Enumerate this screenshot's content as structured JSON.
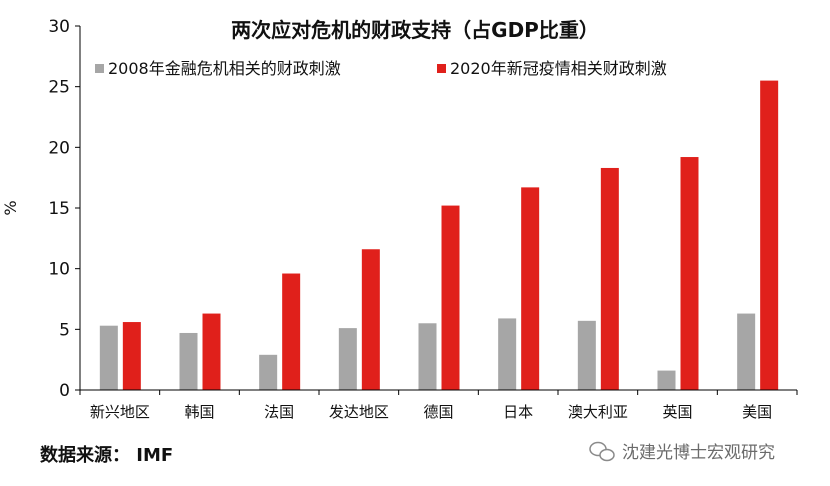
{
  "chart_data": {
    "type": "bar",
    "title": "两次应对危机的财政支持（占GDP比重）",
    "xlabel": "",
    "ylabel": "%",
    "ylim": [
      0,
      30
    ],
    "yticks": [
      0,
      5,
      10,
      15,
      20,
      25,
      30
    ],
    "grid": false,
    "legend_position": "top",
    "categories": [
      "新兴地区",
      "韩国",
      "法国",
      "发达地区",
      "德国",
      "日本",
      "澳大利亚",
      "英国",
      "美国"
    ],
    "series": [
      {
        "name": "2008年金融危机相关的财政刺激",
        "color": "#a6a6a6",
        "values": [
          5.3,
          4.7,
          2.9,
          5.1,
          5.5,
          5.9,
          5.7,
          1.6,
          6.3
        ]
      },
      {
        "name": "2020年新冠疫情相关财政刺激",
        "color": "#e0201b",
        "values": [
          5.6,
          6.3,
          9.6,
          11.6,
          15.2,
          16.7,
          18.3,
          19.2,
          25.5
        ]
      }
    ]
  },
  "footer": {
    "source": "数据来源： IMF",
    "watermark": "沈建光博士宏观研究",
    "watermark_icon": "wechat-icon"
  }
}
